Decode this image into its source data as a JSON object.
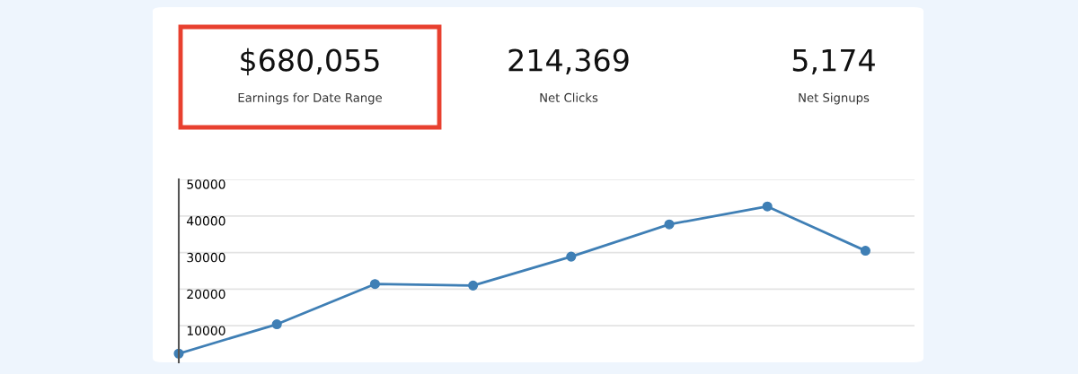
{
  "chart_data": [
    {
      "type": "other",
      "annotations": [
        "$680,055",
        "Earnings for Date Range",
        "214,369",
        "Net Clicks",
        "5,174",
        "Net Signups"
      ]
    },
    {
      "type": "line",
      "categories": [
        null,
        null,
        null,
        null,
        null,
        null,
        null,
        null
      ],
      "series": [
        {
          "color": "#3f7fb5",
          "values": [
            2400,
            10400,
            21400,
            21000,
            28900,
            37700,
            42600,
            30500
          ]
        }
      ],
      "ylim": [
        0,
        50000
      ],
      "yticks": [
        10000,
        20000,
        30000,
        40000,
        50000
      ],
      "grid": "y",
      "marker": "circle",
      "line_style": "solid",
      "tick_labels": "y",
      "legend": false
    }
  ]
}
